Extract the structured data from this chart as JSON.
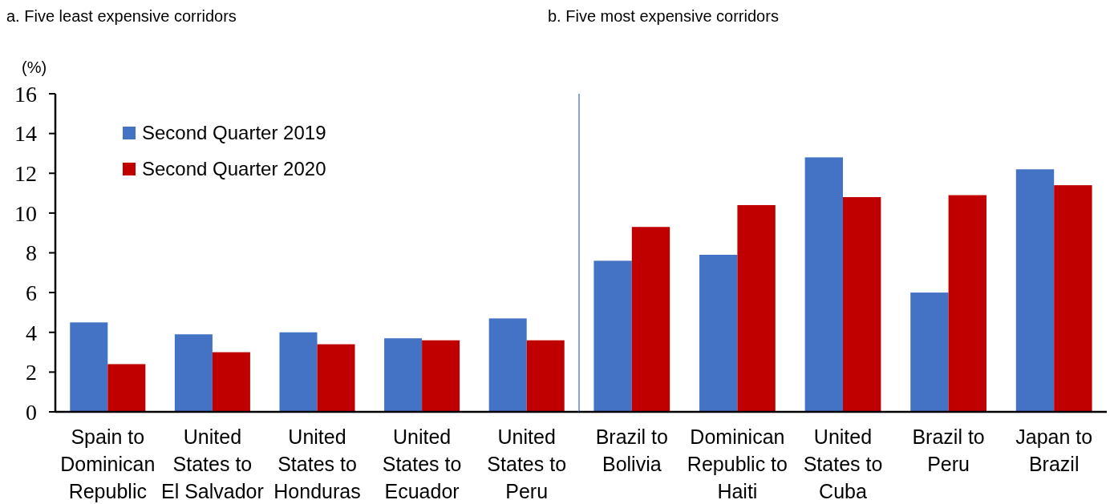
{
  "chart_data": [
    {
      "type": "bar",
      "title": "a. Five least expensive corridors",
      "ylabel": "(%)",
      "categories": [
        "Spain to Dominican Republic",
        "United States to El Salvador",
        "United States to Honduras",
        "United States to Ecuador",
        "United States to Peru"
      ],
      "series": [
        {
          "name": "Second Quarter 2019",
          "color": "#4472c4",
          "values": [
            4.5,
            3.9,
            4.0,
            3.7,
            4.7
          ]
        },
        {
          "name": "Second Quarter 2020",
          "color": "#c00000",
          "values": [
            2.4,
            3.0,
            3.4,
            3.6,
            3.6
          ]
        }
      ],
      "ylim": [
        0,
        16
      ],
      "yticks": [
        0,
        2,
        4,
        6,
        8,
        10,
        12,
        14,
        16
      ],
      "legend": "top left"
    },
    {
      "type": "bar",
      "title": "b. Five most expensive corridors",
      "categories": [
        "Brazil to Bolivia",
        "Dominican Republic to Haiti",
        "United States to Cuba",
        "Brazil to Peru",
        "Japan to Brazil"
      ],
      "series": [
        {
          "color": "#4472c4",
          "values": [
            7.6,
            7.9,
            12.8,
            6.0,
            12.2
          ]
        },
        {
          "color": "#c00000",
          "values": [
            9.3,
            10.4,
            10.8,
            10.9,
            11.4
          ]
        }
      ],
      "ylim": [
        0,
        16
      ],
      "tick_labels": "x"
    }
  ]
}
